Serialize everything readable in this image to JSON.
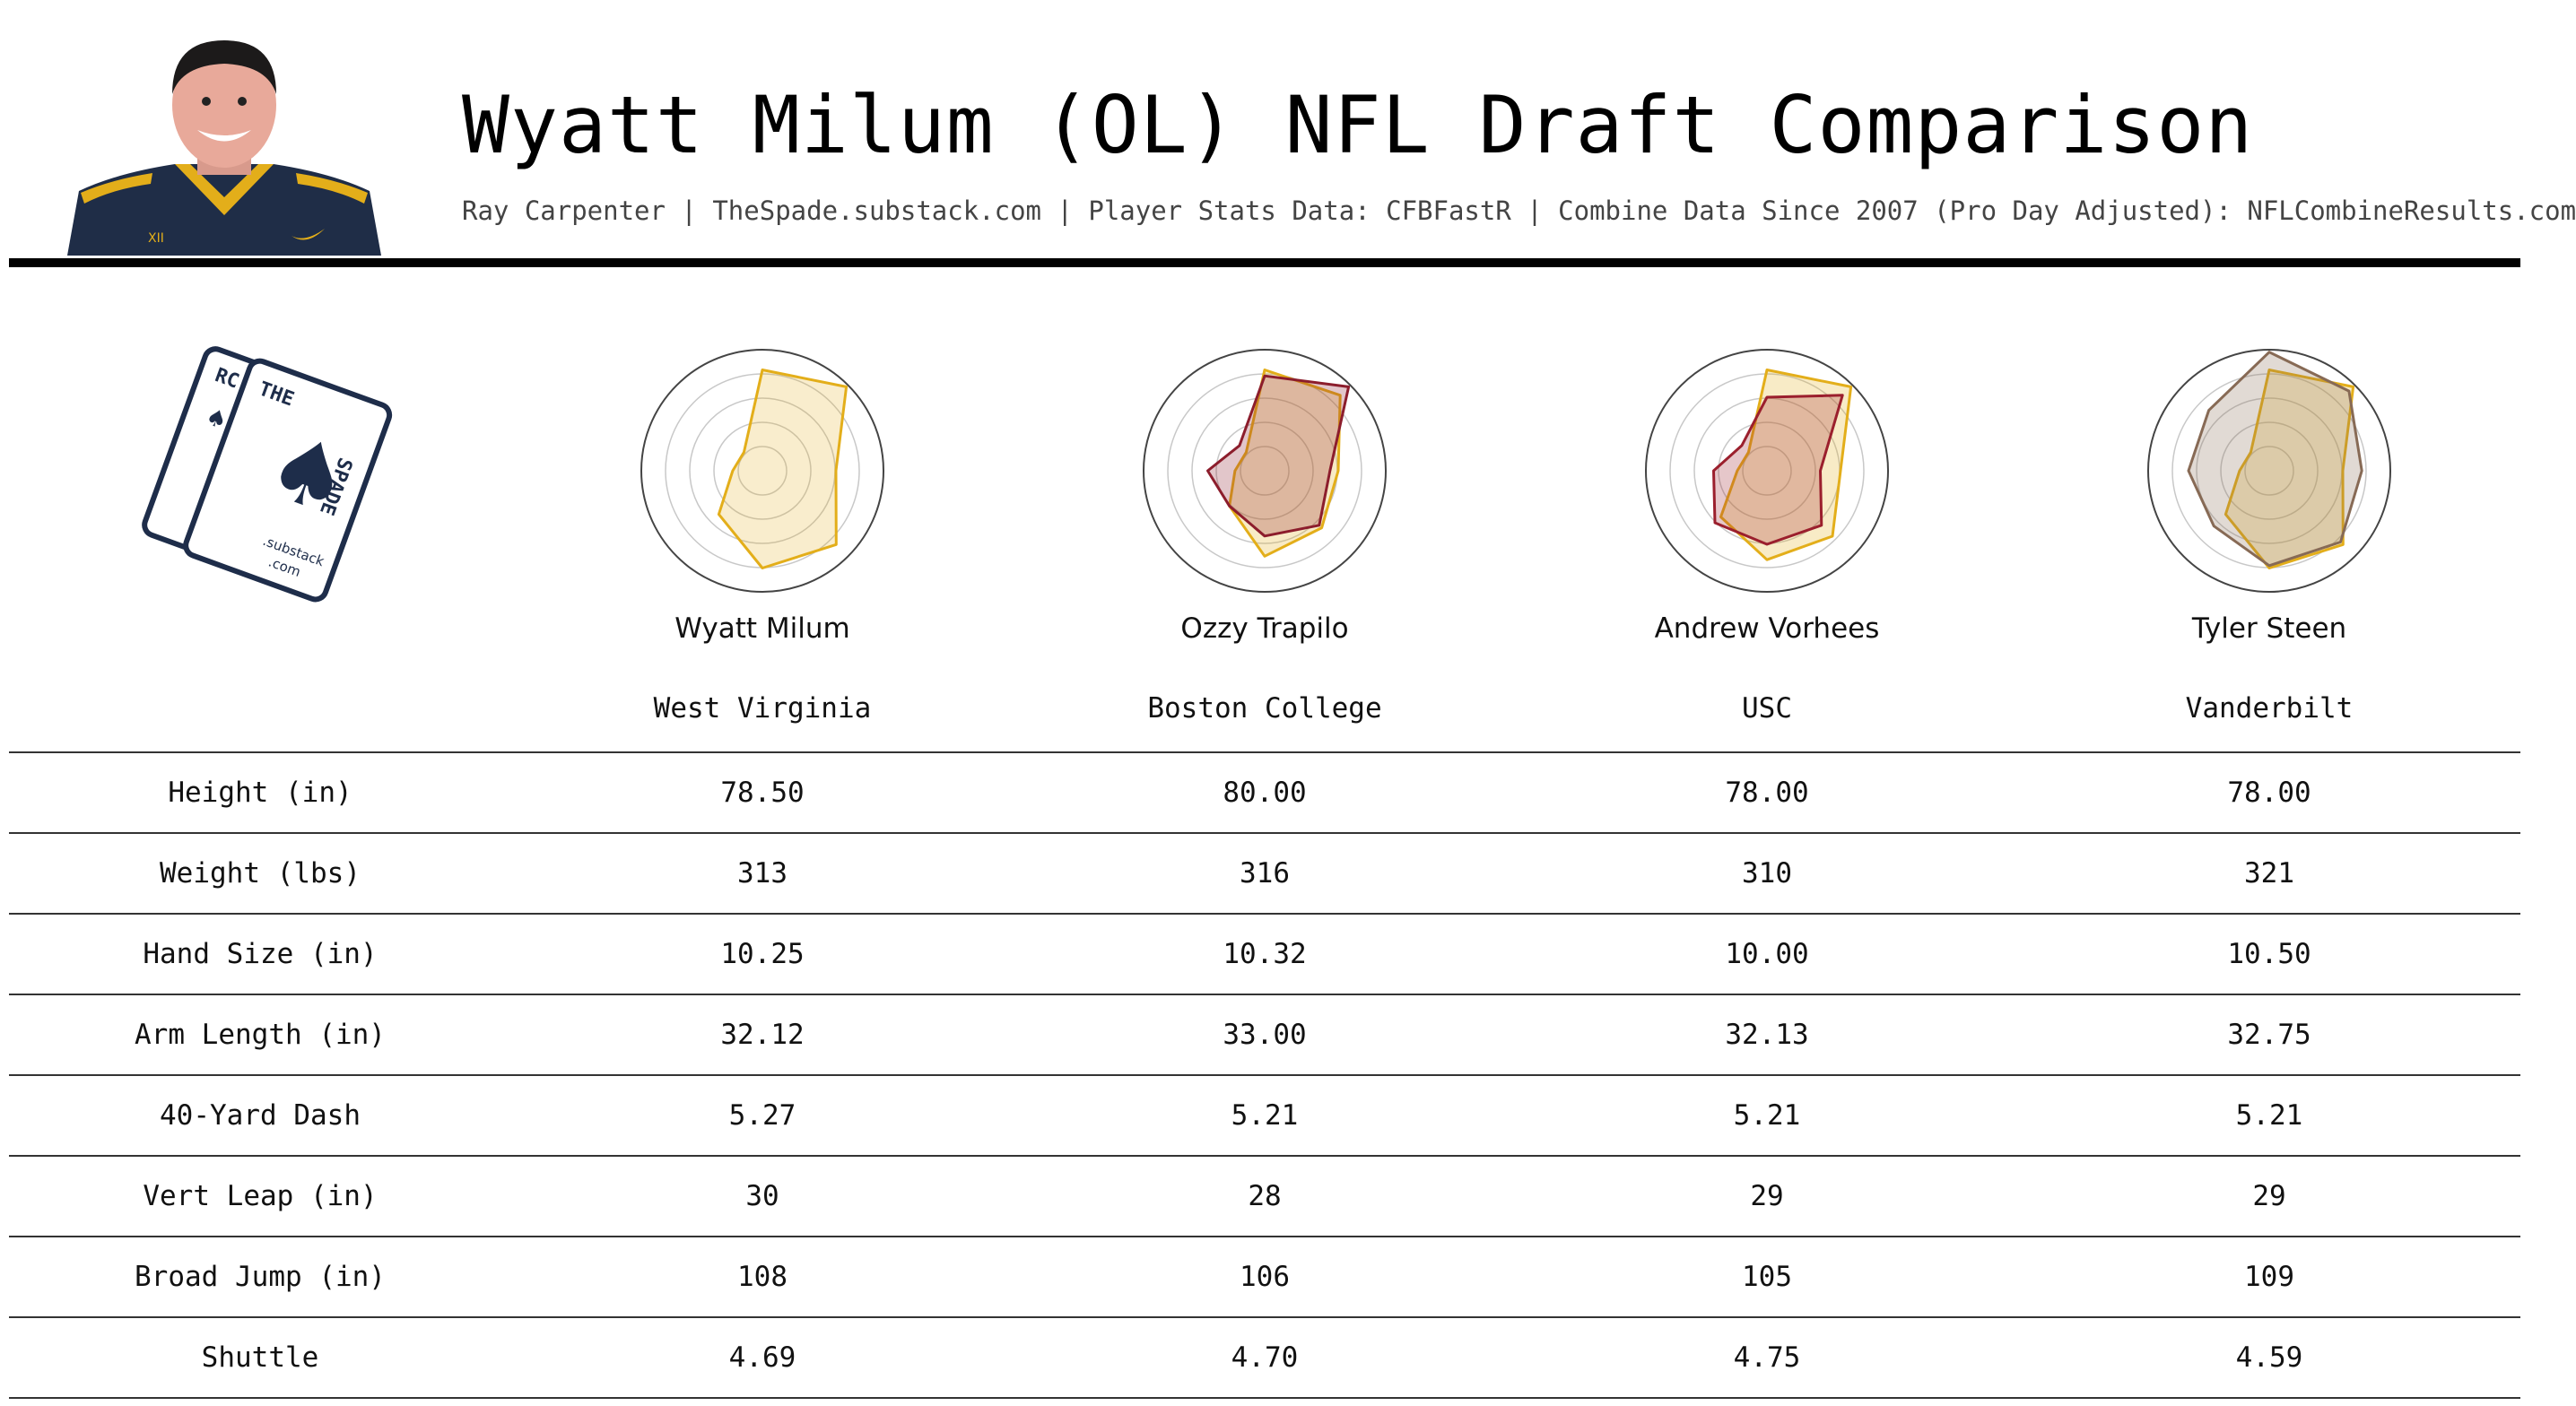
{
  "header": {
    "title": "Wyatt Milum (OL) NFL Draft Comparison",
    "subtitle": "Ray Carpenter | TheSpade.substack.com | Player Stats Data: CFBFastR | Combine Data Since 2007 (Pro Day Adjusted): NFLCombineResults.com"
  },
  "logo": {
    "letters_back": "RC",
    "letters_front_top": "THE",
    "letters_front_side": "SPADE",
    "domain": ".substack",
    "tld": ".com"
  },
  "colors": {
    "base_player": "#e3ae1a",
    "base_fill": "#f7dfa0",
    "comp_trapilo": "#8c1d2c",
    "comp_vorhees": "#9b1f2d",
    "comp_steen": "#876a55"
  },
  "players": [
    {
      "name": "Wyatt Milum",
      "school": "West Virginia"
    },
    {
      "name": "Ozzy Trapilo",
      "school": "Boston College"
    },
    {
      "name": "Andrew Vorhees",
      "school": "USC"
    },
    {
      "name": "Tyler Steen",
      "school": "Vanderbilt"
    }
  ],
  "stats": [
    {
      "label": "Height (in)",
      "values": [
        "78.50",
        "80.00",
        "78.00",
        "78.00"
      ]
    },
    {
      "label": "Weight (lbs)",
      "values": [
        "313",
        "316",
        "310",
        "321"
      ]
    },
    {
      "label": "Hand Size (in)",
      "values": [
        "10.25",
        "10.32",
        "10.00",
        "10.50"
      ]
    },
    {
      "label": "Arm Length (in)",
      "values": [
        "32.12",
        "33.00",
        "32.13",
        "32.75"
      ]
    },
    {
      "label": "40-Yard Dash",
      "values": [
        "5.27",
        "5.21",
        "5.21",
        "5.21"
      ]
    },
    {
      "label": "Vert Leap (in)",
      "values": [
        "30",
        "28",
        "29",
        "29"
      ]
    },
    {
      "label": "Broad Jump (in)",
      "values": [
        "108",
        "106",
        "105",
        "109"
      ]
    },
    {
      "label": "Shuttle",
      "values": [
        "4.69",
        "4.70",
        "4.75",
        "4.59"
      ]
    }
  ],
  "chart_data": [
    {
      "type": "radar",
      "player": "Wyatt Milum",
      "grid": true,
      "series": [
        {
          "color": "#e3ae1a",
          "values": [
            0.85,
            1.0,
            0.62,
            0.88,
            0.82,
            0.52,
            0.25,
            0.22
          ]
        }
      ]
    },
    {
      "type": "radar",
      "player": "Ozzy Trapilo",
      "grid": true,
      "series": [
        {
          "color": "#e3ae1a",
          "values": [
            0.85,
            0.9,
            0.62,
            0.68,
            0.72,
            0.42,
            0.25,
            0.22
          ]
        },
        {
          "color": "#8c1d2c",
          "values": [
            0.8,
            1.0,
            0.55,
            0.65,
            0.55,
            0.42,
            0.48,
            0.3
          ]
        }
      ]
    },
    {
      "type": "radar",
      "player": "Andrew Vorhees",
      "grid": true,
      "series": [
        {
          "color": "#e3ae1a",
          "values": [
            0.85,
            1.0,
            0.62,
            0.78,
            0.75,
            0.55,
            0.25,
            0.22
          ]
        },
        {
          "color": "#9b1f2d",
          "values": [
            0.62,
            0.9,
            0.45,
            0.65,
            0.62,
            0.62,
            0.45,
            0.3
          ]
        }
      ]
    },
    {
      "type": "radar",
      "player": "Tyler Steen",
      "grid": true,
      "series": [
        {
          "color": "#e3ae1a",
          "values": [
            0.85,
            1.0,
            0.62,
            0.88,
            0.82,
            0.52,
            0.25,
            0.22
          ]
        },
        {
          "color": "#876a55",
          "values": [
            1.0,
            0.95,
            0.78,
            0.85,
            0.8,
            0.66,
            0.68,
            0.72
          ]
        }
      ]
    }
  ]
}
